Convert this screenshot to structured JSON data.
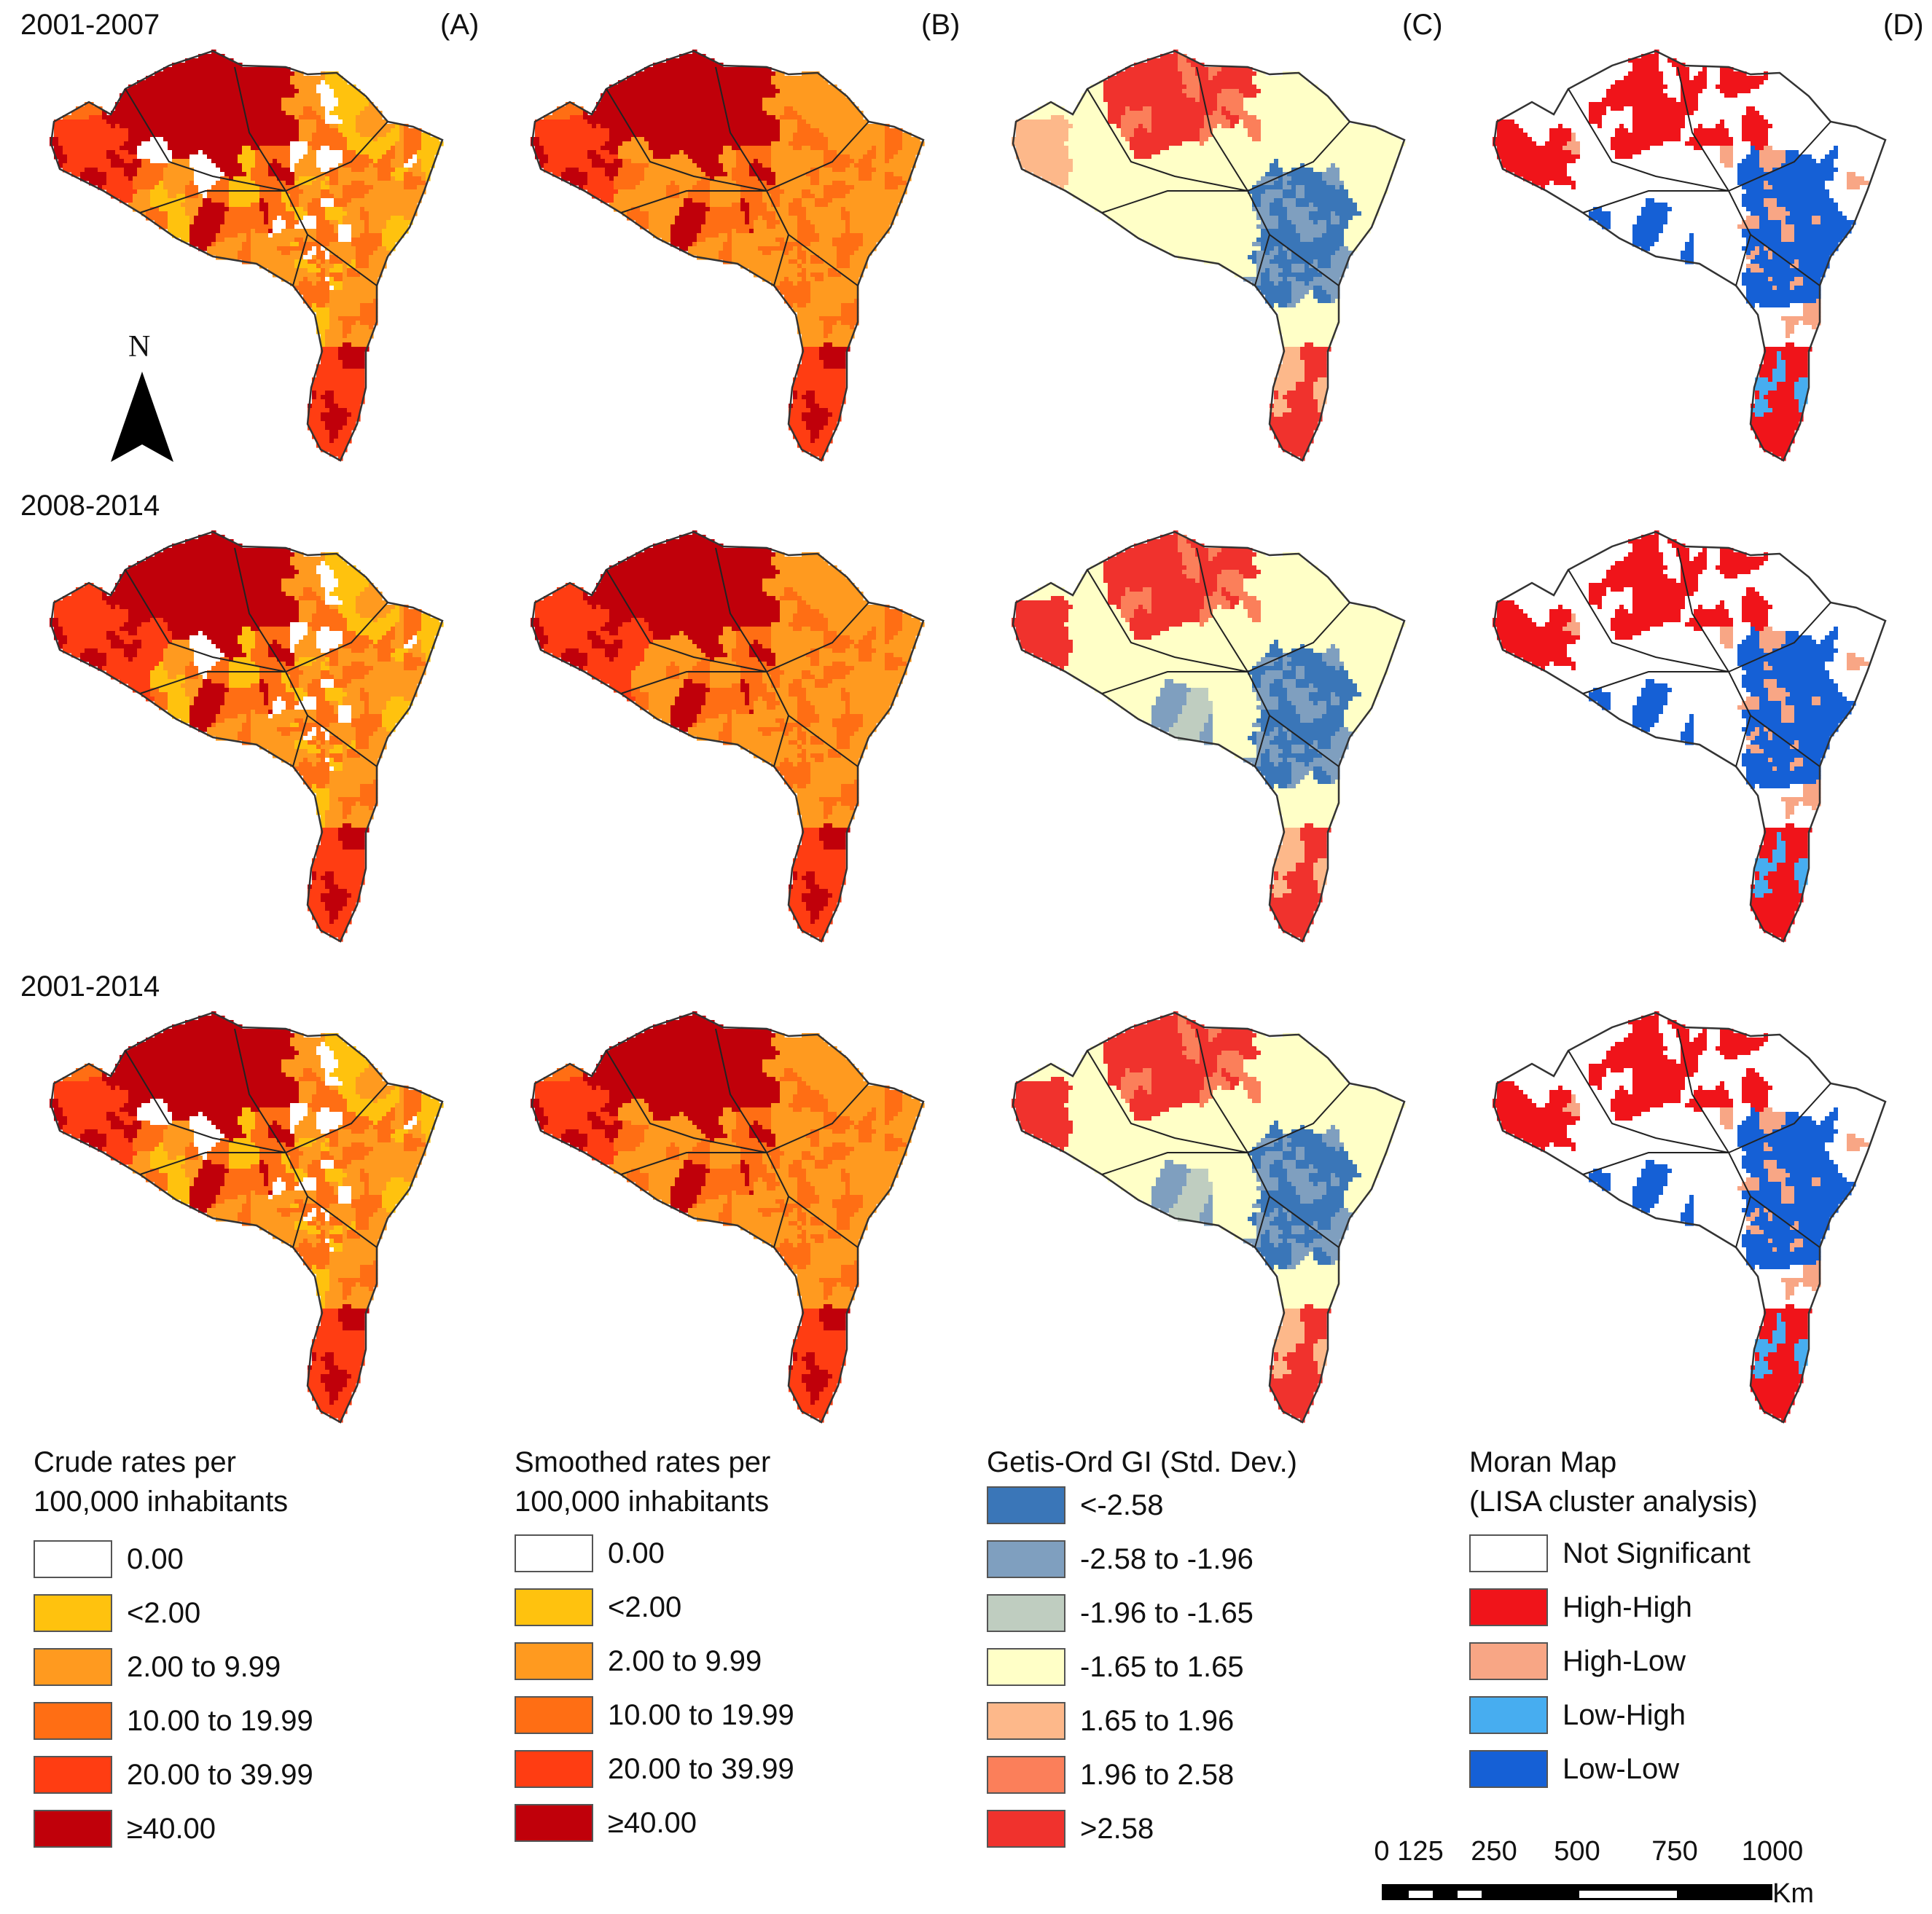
{
  "periods": [
    "2001-2007",
    "2008-2014",
    "2001-2014"
  ],
  "panels": [
    "(A)",
    "(B)",
    "(C)",
    "(D)"
  ],
  "north_label": "N",
  "north_arrow_icon": "north-arrow-icon",
  "legends": {
    "crude": {
      "title_line1": "Crude rates per",
      "title_line2": "100,000 inhabitants",
      "items": [
        {
          "label": "0.00",
          "color": "#ffffff"
        },
        {
          "label": "<2.00",
          "color": "#ffc20e"
        },
        {
          "label": "2.00 to 9.99",
          "color": "#ff9a1f"
        },
        {
          "label": "10.00 to 19.99",
          "color": "#ff6e14"
        },
        {
          "label": "20.00 to 39.99",
          "color": "#ff3d12"
        },
        {
          "label": "≥40.00",
          "color": "#c0000a"
        }
      ]
    },
    "smoothed": {
      "title_line1": "Smoothed rates per",
      "title_line2": "100,000 inhabitants",
      "items": [
        {
          "label": "0.00",
          "color": "#ffffff"
        },
        {
          "label": "<2.00",
          "color": "#ffc20e"
        },
        {
          "label": "2.00 to 9.99",
          "color": "#ff9a1f"
        },
        {
          "label": "10.00 to 19.99",
          "color": "#ff6e14"
        },
        {
          "label": "20.00 to 39.99",
          "color": "#ff3d12"
        },
        {
          "label": "≥40.00",
          "color": "#c0000a"
        }
      ]
    },
    "getis": {
      "title_line1": "Getis-Ord GI (Std. Dev.)",
      "title_line2": "",
      "items": [
        {
          "label": "<-2.58",
          "color": "#3a76b8"
        },
        {
          "label": "-2.58 to -1.96",
          "color": "#7f9fbf"
        },
        {
          "label": "-1.96 to -1.65",
          "color": "#bfcdc0"
        },
        {
          "label": "-1.65 to 1.65",
          "color": "#ffffc7"
        },
        {
          "label": "1.65 to 1.96",
          "color": "#fdb88a"
        },
        {
          "label": "1.96 to 2.58",
          "color": "#fb7f5a"
        },
        {
          "label": ">2.58",
          "color": "#f0322d"
        }
      ]
    },
    "moran": {
      "title_line1": "Moran Map",
      "title_line2": "(LISA cluster analysis)",
      "items": [
        {
          "label": "Not Significant",
          "color": "#ffffff"
        },
        {
          "label": "High-High",
          "color": "#f0141a"
        },
        {
          "label": "High-Low",
          "color": "#f8a685"
        },
        {
          "label": "Low-High",
          "color": "#47adf0"
        },
        {
          "label": "Low-Low",
          "color": "#1560d6"
        }
      ]
    }
  },
  "scalebar": {
    "ticks": [
      "0",
      "125",
      "250",
      "500",
      "750",
      "1000"
    ],
    "tick_values_km": [
      0,
      125,
      250,
      500,
      750,
      1000
    ],
    "unit": "Km"
  }
}
